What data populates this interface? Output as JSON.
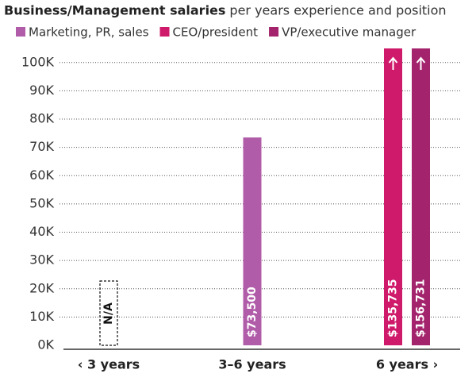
{
  "chart_data": {
    "type": "bar",
    "title": "Business/Management salaries",
    "subtitle": "per years experience and position",
    "categories": [
      "‹ 3 years",
      "3–6 years",
      "6 years ›"
    ],
    "series": [
      {
        "name": "Marketing, PR, sales",
        "color": "#b05ca8",
        "values": [
          null,
          73500,
          null
        ],
        "value_labels": [
          null,
          "$73,500",
          null
        ]
      },
      {
        "name": "CEO/president",
        "color": "#cf1a6b",
        "values": [
          null,
          null,
          135735
        ],
        "value_labels": [
          null,
          null,
          "$135,735"
        ]
      },
      {
        "name": "VP/executive manager",
        "color": "#a3246c",
        "values": [
          null,
          null,
          156731
        ],
        "value_labels": [
          null,
          null,
          "$156,731"
        ]
      }
    ],
    "annotations": [
      {
        "text": "N/A",
        "category": 0
      }
    ],
    "ylim": [
      0,
      105000
    ],
    "yticks": [
      {
        "value": 0,
        "label": "0K"
      },
      {
        "value": 10000,
        "label": "10K"
      },
      {
        "value": 20000,
        "label": "20K"
      },
      {
        "value": 30000,
        "label": "30K"
      },
      {
        "value": 40000,
        "label": "40K"
      },
      {
        "value": 50000,
        "label": "50K"
      },
      {
        "value": 60000,
        "label": "60K"
      },
      {
        "value": 70000,
        "label": "70K"
      },
      {
        "value": 80000,
        "label": "80K"
      },
      {
        "value": 90000,
        "label": "90K"
      },
      {
        "value": 100000,
        "label": "100K"
      }
    ],
    "grid": true
  }
}
